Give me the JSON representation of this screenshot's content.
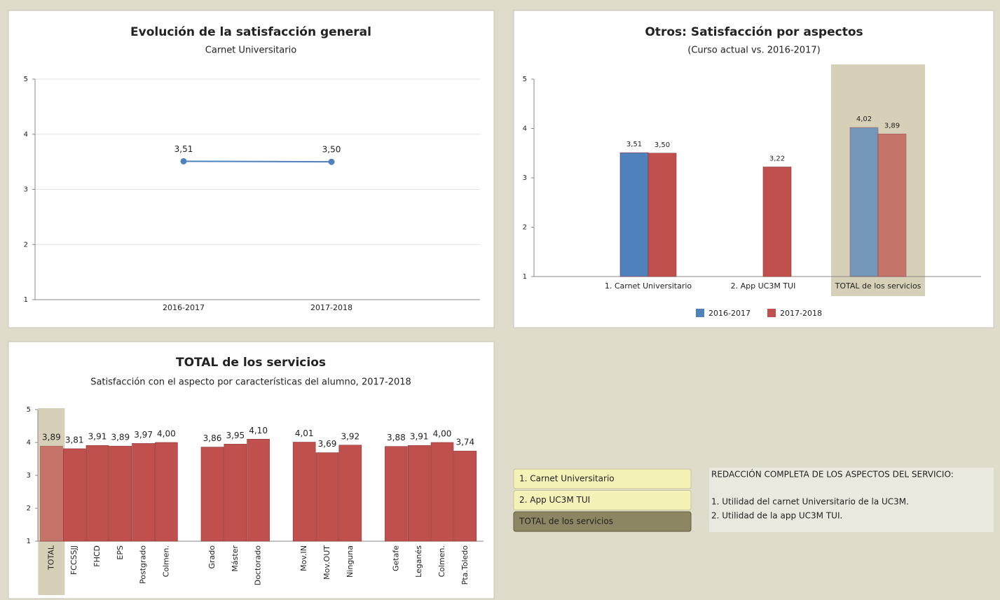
{
  "chart_data": [
    {
      "type": "line",
      "title": "Evolución de la satisfacción general",
      "subtitle": "Carnet Universitario",
      "categories": [
        "2016-2017",
        "2017-2018"
      ],
      "series": [
        {
          "color": "#4f81bd",
          "values": [
            3.51,
            3.5
          ],
          "value_labels": [
            "3,51",
            "3,50"
          ]
        }
      ],
      "ylim": [
        1,
        5
      ],
      "yticks": [
        1,
        2,
        3,
        4,
        5
      ],
      "grid": true
    },
    {
      "type": "bar",
      "title": "Otros: Satisfacción por aspectos",
      "subtitle": "(Curso actual vs. 2016-2017)",
      "categories": [
        "1. Carnet Universitario",
        "2. App UC3M TUI",
        "TOTAL de los servicios"
      ],
      "series": [
        {
          "name": "2016-2017",
          "color": "#4f81bd",
          "values": [
            3.51,
            null,
            4.02
          ],
          "value_labels": [
            "3,51",
            null,
            "4,02"
          ]
        },
        {
          "name": "2017-2018",
          "color": "#c0504d",
          "values": [
            3.5,
            3.22,
            3.89
          ],
          "value_labels": [
            "3,50",
            "3,22",
            "3,89"
          ]
        }
      ],
      "ylim": [
        1,
        5
      ],
      "yticks": [
        1,
        2,
        3,
        4,
        5
      ],
      "grid": false,
      "highlight": 2,
      "legend": "bottom"
    },
    {
      "type": "bar",
      "title": "TOTAL de los servicios",
      "subtitle": "Satisfacción con el aspecto por características del alumno, 2017-2018",
      "categories": [
        "TOTAL",
        "FCCSSJJ",
        "FHCD",
        "EPS",
        "Postgrado",
        "Colmen.",
        null,
        "Grado",
        "Máster",
        "Doctorado",
        null,
        "Mov.IN",
        "Mov.OUT",
        "Ninguna",
        null,
        "Getafe",
        "Leganés",
        "Colmen.",
        "Pta.Toledo"
      ],
      "series": [
        {
          "color": "#c0504d",
          "values": [
            3.89,
            3.81,
            3.91,
            3.89,
            3.97,
            4.0,
            null,
            3.86,
            3.95,
            4.1,
            null,
            4.01,
            3.69,
            3.92,
            null,
            3.88,
            3.91,
            4.0,
            3.74
          ],
          "value_labels": [
            "3,89",
            "3,81",
            "3,91",
            "3,89",
            "3,97",
            "4,00",
            null,
            "3,86",
            "3,95",
            "4,10",
            null,
            "4,01",
            "3,69",
            "3,92",
            null,
            "3,88",
            "3,91",
            "4,00",
            "3,74"
          ]
        }
      ],
      "ylim": [
        1,
        5
      ],
      "yticks": [
        1,
        2,
        3,
        4,
        5
      ],
      "grid": false,
      "highlight": 0
    }
  ],
  "buttons": {
    "items": [
      "1. Carnet Universitario",
      "2. App UC3M TUI",
      "TOTAL de los servicios"
    ],
    "selected": 2
  },
  "notes": {
    "heading": "REDACCIÓN COMPLETA DE LOS ASPECTOS DEL SERVICIO:",
    "lines": [
      "1. Utilidad del carnet Universitario de la UC3M.",
      "2. Utilidad de la app UC3M TUI."
    ]
  }
}
